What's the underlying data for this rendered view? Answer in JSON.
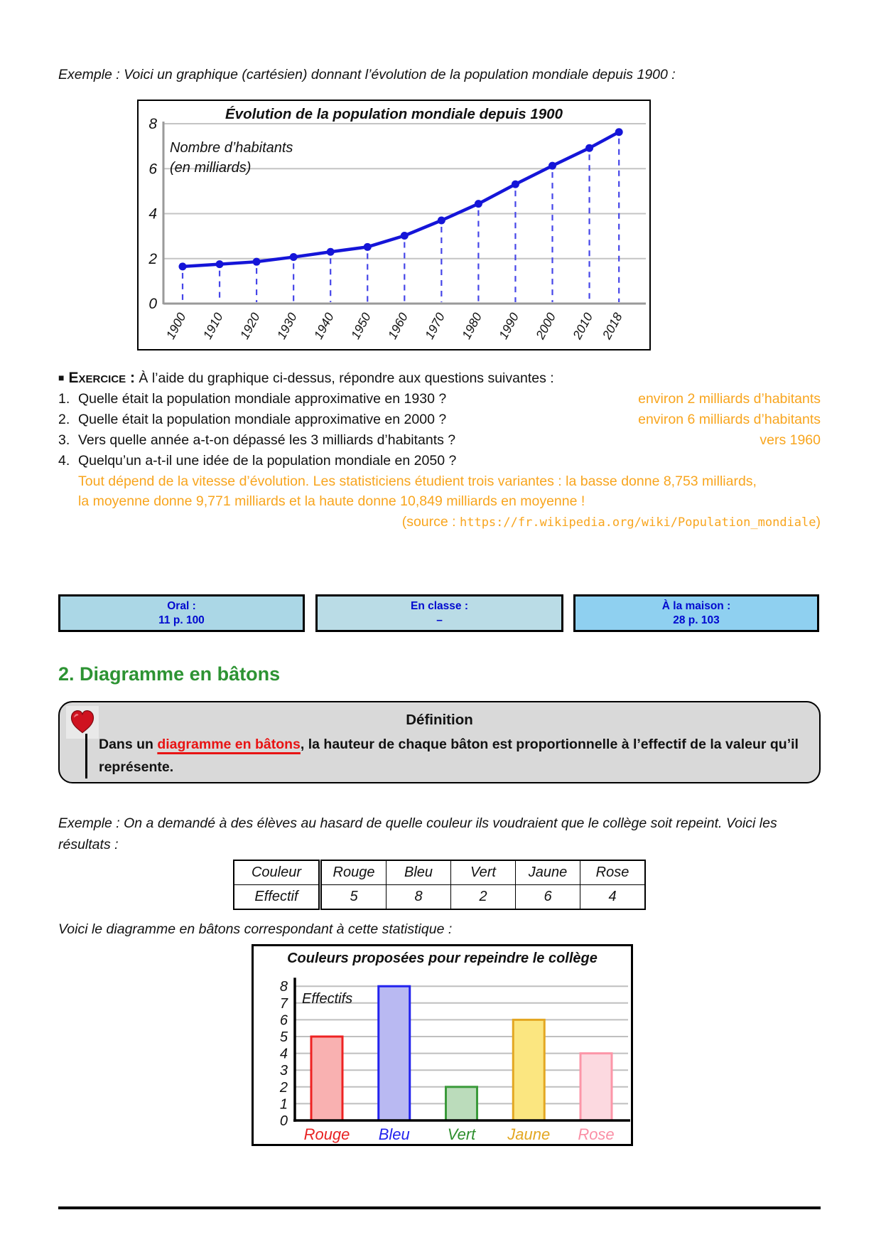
{
  "colors": {
    "answer_orange": "#f8a51e",
    "section_green": "#2d9333",
    "definition_term_red": "#e81313",
    "line_blue": "#1515d8",
    "stem_blue": "#4545e8"
  },
  "page": {
    "intro": "Exemple : Voici un graphique (cartésien) donnant l’évolution de la population mondiale depuis 1900 :",
    "voici_text": "Voici le diagramme en bâtons correspondant à cette statistique :"
  },
  "chart_data": [
    {
      "type": "line",
      "title": "Évolution de la population mondiale depuis 1900",
      "annotation": [
        "Nombre d’habitants",
        "(en milliards)"
      ],
      "x": [
        1900,
        1910,
        1920,
        1930,
        1940,
        1950,
        1960,
        1970,
        1980,
        1990,
        2000,
        2010,
        2018
      ],
      "values": [
        1.65,
        1.75,
        1.86,
        2.07,
        2.3,
        2.52,
        3.02,
        3.7,
        4.44,
        5.31,
        6.13,
        6.92,
        7.63
      ],
      "xlabel": "",
      "ylabel": "Nombre d’habitants (en milliards)",
      "ylim": [
        0,
        8
      ],
      "yticks": [
        0,
        2,
        4,
        6,
        8
      ],
      "grid": true,
      "legend_position": "none"
    },
    {
      "type": "bar",
      "title": "Couleurs proposées pour repeindre le collège",
      "categories": [
        "Rouge",
        "Bleu",
        "Vert",
        "Jaune",
        "Rose"
      ],
      "values": [
        5,
        8,
        2,
        6,
        4
      ],
      "xlabel": "",
      "ylabel": "Effectifs",
      "ylim": [
        0,
        8
      ],
      "yticks": [
        0,
        1,
        2,
        3,
        4,
        5,
        6,
        7,
        8
      ],
      "grid": true,
      "legend_position": "none",
      "bar_border_colors": [
        "#ee2222",
        "#2222ee",
        "#3a9a3a",
        "#e3a722",
        "#fc96a8"
      ],
      "bar_fill_colors": [
        "#f9b1b1",
        "#b9b9f2",
        "#bbdcbb",
        "#fbe680",
        "#fcd9e0"
      ],
      "label_colors": [
        "#e82222",
        "#2222ee",
        "#2e8f2e",
        "#e3a722",
        "#fa8fa5"
      ]
    }
  ],
  "exercise": {
    "bullet": "■",
    "label": "Exercice :",
    "intro": " À l’aide du graphique ci-dessus, répondre aux questions suivantes :",
    "questions": [
      {
        "num": "1.",
        "text": "Quelle était la population mondiale approximative en 1930 ?",
        "answer": "environ 2 milliards d’habitants"
      },
      {
        "num": "2.",
        "text": "Quelle était la population mondiale approximative en 2000 ?",
        "answer": "environ 6 milliards d’habitants"
      },
      {
        "num": "3.",
        "text": "Vers quelle année a-t-on dépassé les 3 milliards d’habitants ?",
        "answer": "vers 1960"
      },
      {
        "num": "4.",
        "text": "Quelqu’un a-t-il une idée de la population mondiale en 2050 ?",
        "answer": ""
      }
    ],
    "answer4_lines": [
      "Tout dépend de la vitesse d’évolution. Les statisticiens étudient trois variantes : la basse donne 8,753 milliards,",
      "la moyenne donne 9,771 milliards et la haute donne 10,849 milliards en moyenne !"
    ],
    "source_prefix": "(source : ",
    "source_url": "https://fr.wikipedia.org/wiki/Population_mondiale",
    "source_suffix": ")"
  },
  "homework_boxes": [
    {
      "title": "Oral :",
      "value": "11 p. 100",
      "bg": "#abd7e6"
    },
    {
      "title": "En classe :",
      "value": "–",
      "bg": "#badce6"
    },
    {
      "title": "À la maison :",
      "value": "28 p. 103",
      "bg": "#8fd0f0"
    }
  ],
  "section2": {
    "title": "2. Diagramme en bâtons"
  },
  "definition": {
    "heading": "Définition",
    "text_before": "Dans un ",
    "term": "diagramme en bâtons",
    "text_after": ", la hauteur de chaque bâton est proportionnelle à l’effectif de la valeur qu’il représente."
  },
  "example2": "Exemple : On a demandé à des élèves au hasard de quelle couleur ils voudraient que le collège soit repeint. Voici les résultats :",
  "stats_table": {
    "header_row": [
      "Couleur",
      "Rouge",
      "Bleu",
      "Vert",
      "Jaune",
      "Rose"
    ],
    "value_row": [
      "Effectif",
      "5",
      "8",
      "2",
      "6",
      "4"
    ]
  }
}
